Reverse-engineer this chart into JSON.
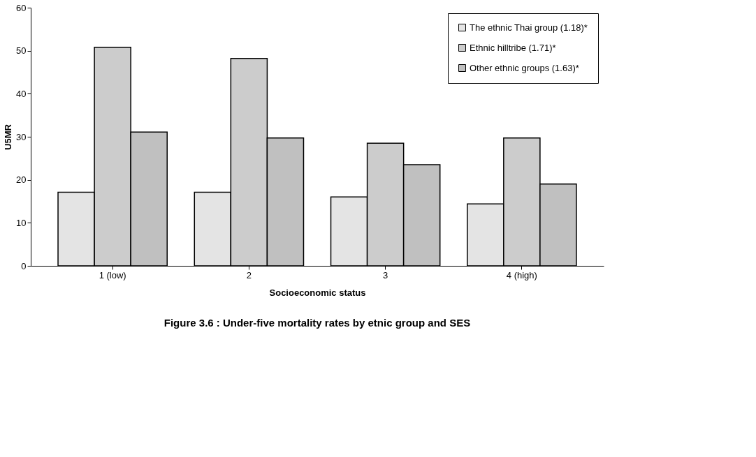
{
  "chart_data": {
    "type": "bar",
    "title": "Figure 3.6   : Under-five mortality rates by etnic group and SES",
    "xlabel": "Socioeconomic status",
    "ylabel": "U5MR",
    "categories": [
      "1 (low)",
      "2",
      "3",
      "4 (high)"
    ],
    "series": [
      {
        "name": "The ethnic Thai group (1.18)*",
        "color": "#e4e4e4",
        "values": [
          17.1,
          17.1,
          16.0,
          14.4
        ]
      },
      {
        "name": "Ethnic hilltribe (1.71)*",
        "color": "#cccccc",
        "values": [
          50.8,
          48.2,
          28.5,
          29.7
        ]
      },
      {
        "name": "Other ethnic groups (1.63)*",
        "color": "#c0c0c0",
        "values": [
          31.1,
          29.7,
          23.5,
          19.0
        ]
      }
    ],
    "ylim": [
      0,
      60
    ],
    "yticks": [
      0,
      10,
      20,
      30,
      40,
      50,
      60
    ],
    "grid": false,
    "legend": "top right"
  }
}
